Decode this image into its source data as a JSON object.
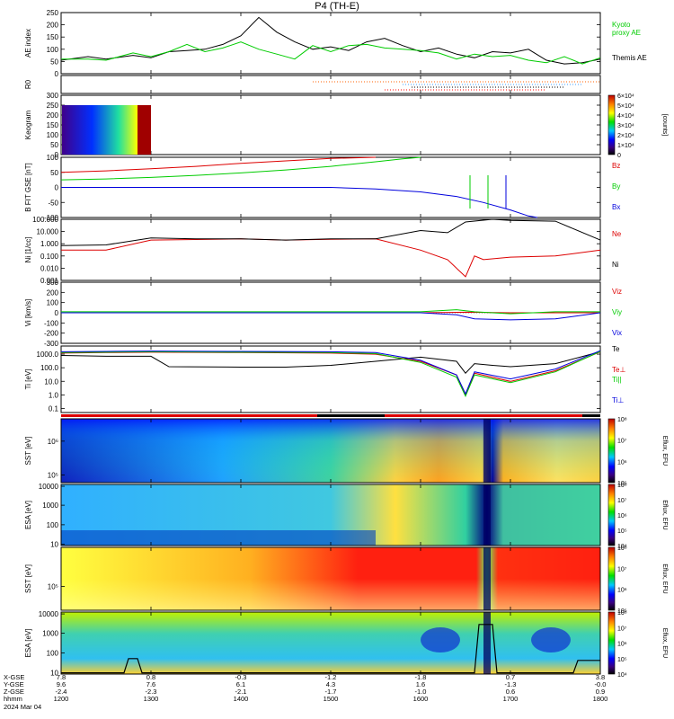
{
  "title": "P4 (TH-E)",
  "footer": {
    "row_labels": [
      "X-GSE",
      "Y-GSE",
      "Z-GSE",
      "hhmm",
      "2024 Mar 04"
    ],
    "columns": [
      {
        "x": "7.8",
        "y": "9.6",
        "z": "-2.4",
        "t": "1200"
      },
      {
        "x": "0.8",
        "y": "7.6",
        "z": "-2.3",
        "t": "1300"
      },
      {
        "x": "-0.3",
        "y": "6.1",
        "z": "-2.1",
        "t": "1400"
      },
      {
        "x": "-1.2",
        "y": "4.3",
        "z": "-1.7",
        "t": "1500"
      },
      {
        "x": "-1.8",
        "y": "1.6",
        "z": "-1.0",
        "t": "1600"
      },
      {
        "x": "0.7",
        "y": "-1.3",
        "z": "0.6",
        "t": "1700"
      },
      {
        "x": "3.8",
        "y": "-0.0",
        "z": "0.9",
        "t": "1800"
      }
    ]
  },
  "chart_data": [
    {
      "type": "line",
      "ylabel": "AE index",
      "ylim": [
        0,
        250
      ],
      "yticks": [
        "0",
        "50",
        "100",
        "150",
        "200",
        "250"
      ],
      "x_range_hhmm": [
        "1200",
        "1800"
      ],
      "series": [
        {
          "name": "Themis AE",
          "color": "#000000",
          "x": [
            0,
            0.3,
            0.5,
            0.8,
            1.0,
            1.2,
            1.4,
            1.6,
            1.8,
            2.0,
            2.2,
            2.4,
            2.6,
            2.8,
            3.0,
            3.2,
            3.4,
            3.6,
            3.8,
            4.0,
            4.2,
            4.4,
            4.6,
            4.8,
            5.0,
            5.2,
            5.4,
            5.6,
            5.8,
            6.0
          ],
          "y": [
            55,
            70,
            60,
            75,
            65,
            90,
            95,
            100,
            120,
            155,
            230,
            170,
            130,
            100,
            110,
            95,
            130,
            145,
            115,
            90,
            105,
            80,
            65,
            90,
            85,
            100,
            55,
            40,
            45,
            60
          ]
        },
        {
          "name": "Kyoto proxy AE",
          "color": "#00cc00",
          "x": [
            0,
            0.3,
            0.5,
            0.8,
            1.0,
            1.2,
            1.4,
            1.6,
            1.8,
            2.0,
            2.2,
            2.4,
            2.6,
            2.8,
            3.0,
            3.2,
            3.4,
            3.6,
            3.8,
            4.0,
            4.2,
            4.4,
            4.6,
            4.8,
            5.0,
            5.2,
            5.4,
            5.6,
            5.8,
            6.0
          ],
          "y": [
            60,
            60,
            55,
            85,
            70,
            90,
            120,
            90,
            105,
            130,
            100,
            80,
            60,
            115,
            90,
            115,
            120,
            105,
            100,
            95,
            85,
            60,
            80,
            70,
            75,
            55,
            45,
            70,
            40,
            65
          ]
        }
      ]
    },
    {
      "type": "line",
      "ylabel": "R0",
      "series": []
    },
    {
      "type": "heatmap",
      "ylabel": "Keogram",
      "ylim": [
        0,
        300
      ],
      "yticks": [
        "0",
        "50",
        "100",
        "150",
        "200",
        "250",
        "300"
      ],
      "colorbar_label": "[counts]",
      "colorbar_ticks": [
        "0",
        "1×10⁴",
        "2×10⁴",
        "3×10⁴",
        "4×10⁴",
        "5×10⁴",
        "6×10⁴"
      ]
    },
    {
      "type": "line",
      "ylabel": "B FIT GSE [nT]",
      "ylim": [
        -100,
        100
      ],
      "yticks": [
        "-100",
        "-50",
        "0",
        "50",
        "100"
      ],
      "series": [
        {
          "name": "Bz",
          "color": "#dd0000",
          "x": [
            0,
            0.5,
            1.0,
            1.5,
            2.0,
            2.5,
            3.0,
            3.5
          ],
          "y": [
            50,
            55,
            62,
            70,
            80,
            88,
            96,
            100
          ]
        },
        {
          "name": "By",
          "color": "#00cc00",
          "x": [
            0,
            0.5,
            1.0,
            1.5,
            2.0,
            2.5,
            3.0,
            3.5,
            3.8,
            4.0
          ],
          "y": [
            25,
            28,
            33,
            40,
            48,
            58,
            70,
            85,
            95,
            100
          ]
        },
        {
          "name": "Bx",
          "color": "#0000dd",
          "x": [
            0,
            0.5,
            1.0,
            1.5,
            2.0,
            2.5,
            3.0,
            3.5,
            4.0,
            4.4,
            4.7,
            5.0,
            5.2,
            5.3
          ],
          "y": [
            0,
            0,
            0,
            0,
            0,
            0,
            0,
            -5,
            -15,
            -30,
            -50,
            -75,
            -95,
            -100
          ]
        }
      ]
    },
    {
      "type": "line",
      "ylabel": "Ni [1/cc]",
      "ylog": true,
      "yticks": [
        "0.001",
        "0.010",
        "0.100",
        "1.000",
        "10.000",
        "100.000"
      ],
      "series": [
        {
          "name": "Ne",
          "color": "#dd0000",
          "x": [
            0,
            0.5,
            1.0,
            1.5,
            2.0,
            2.5,
            3.0,
            3.5,
            4.0,
            4.3,
            4.5,
            4.6,
            4.7,
            5.0,
            5.5,
            6.0
          ],
          "y": [
            0.3,
            0.3,
            2.0,
            2.2,
            2.5,
            2.0,
            2.3,
            2.5,
            0.3,
            0.05,
            0.002,
            0.1,
            0.05,
            0.08,
            0.1,
            0.3
          ]
        },
        {
          "name": "Ni",
          "color": "#000000",
          "x": [
            0,
            0.5,
            1.0,
            1.5,
            2.0,
            2.5,
            3.0,
            3.5,
            4.0,
            4.3,
            4.5,
            4.8,
            5.0,
            5.5,
            6.0
          ],
          "y": [
            0.7,
            0.8,
            3.0,
            2.5,
            2.5,
            2.0,
            2.5,
            2.5,
            12,
            8,
            60,
            100,
            80,
            70,
            2.0
          ]
        }
      ]
    },
    {
      "type": "line",
      "ylabel": "Vi [km/s]",
      "ylim": [
        -300,
        300
      ],
      "yticks": [
        "-300",
        "-200",
        "-100",
        "0",
        "100",
        "200",
        "300"
      ],
      "series": [
        {
          "name": "Viz",
          "color": "#dd0000",
          "x": [
            0,
            1.0,
            2.0,
            3.0,
            4.0,
            4.5,
            5.0,
            6.0
          ],
          "y": [
            0,
            0,
            0,
            0,
            0,
            5,
            0,
            0
          ]
        },
        {
          "name": "Viy",
          "color": "#00cc00",
          "x": [
            0,
            1.0,
            2.0,
            3.0,
            4.0,
            4.4,
            4.6,
            5.0,
            5.5,
            6.0
          ],
          "y": [
            10,
            10,
            10,
            10,
            10,
            30,
            10,
            -10,
            10,
            10
          ]
        },
        {
          "name": "Vix",
          "color": "#0000dd",
          "x": [
            0,
            1.0,
            2.0,
            3.0,
            4.0,
            4.4,
            4.6,
            5.0,
            5.5,
            6.0
          ],
          "y": [
            0,
            0,
            0,
            0,
            0,
            -20,
            -60,
            -70,
            -60,
            0
          ]
        }
      ]
    },
    {
      "type": "line",
      "ylabel": "Ti [eV]",
      "ylog": true,
      "yticks": [
        "0.1",
        "1.0",
        "10.0",
        "100.0",
        "1000.0"
      ],
      "series": [
        {
          "name": "Te",
          "color": "#000000",
          "x": [
            0,
            0.5,
            1.0,
            1.2,
            2.0,
            2.5,
            3.0,
            3.5,
            4.0,
            4.4,
            4.5,
            4.6,
            4.8,
            5.0,
            5.5,
            6.0
          ],
          "y": [
            800,
            700,
            700,
            120,
            110,
            110,
            150,
            300,
            600,
            300,
            40,
            200,
            150,
            120,
            200,
            1500
          ]
        },
        {
          "name": "Te⊥",
          "color": "#dd0000",
          "x": [
            0,
            0.5,
            1.0,
            2.0,
            3.0,
            3.5,
            4.0,
            4.4,
            4.5,
            4.6,
            5.0,
            5.5,
            6.0
          ],
          "y": [
            1200,
            1300,
            1400,
            1300,
            1200,
            1000,
            300,
            30,
            1,
            40,
            10,
            60,
            1500
          ]
        },
        {
          "name": "Ti||",
          "color": "#00cc00",
          "x": [
            0,
            0.5,
            1.0,
            2.0,
            3.0,
            3.5,
            4.0,
            4.4,
            4.5,
            4.6,
            5.0,
            5.5,
            6.0
          ],
          "y": [
            1300,
            1400,
            1500,
            1400,
            1300,
            1100,
            250,
            20,
            0.8,
            30,
            8,
            50,
            1600
          ]
        },
        {
          "name": "Ti⊥",
          "color": "#0000dd",
          "x": [
            0,
            0.5,
            1.0,
            2.0,
            3.0,
            3.5,
            4.0,
            4.4,
            4.5,
            4.6,
            5.0,
            5.5,
            6.0
          ],
          "y": [
            1500,
            1600,
            1700,
            1600,
            1500,
            1300,
            350,
            30,
            1.2,
            50,
            15,
            80,
            1800
          ]
        }
      ]
    },
    {
      "type": "heatmap",
      "ylabel": "SST [eV]",
      "yticks": [
        "10⁵",
        "10⁶"
      ],
      "colorbar_label": "Eflux, EFU",
      "colorbar_ticks": [
        "10⁵",
        "10⁶",
        "10⁷",
        "10⁸"
      ]
    },
    {
      "type": "heatmap",
      "ylabel": "ESA [eV]",
      "yticks": [
        "10",
        "100",
        "1000",
        "10000"
      ],
      "colorbar_label": "Eflux, EFU",
      "colorbar_ticks": [
        "10⁴",
        "10⁵",
        "10⁶",
        "10⁷",
        "10⁸"
      ]
    },
    {
      "type": "heatmap",
      "ylabel": "SST [eV]",
      "yticks": [
        "10⁵"
      ],
      "colorbar_label": "Eflux, EFU",
      "colorbar_ticks": [
        "10⁵",
        "10⁶",
        "10⁷",
        "10⁸"
      ]
    },
    {
      "type": "heatmap",
      "ylabel": "ESA [eV]",
      "yticks": [
        "10",
        "100",
        "1000",
        "10000"
      ],
      "colorbar_label": "Eflux, EFU",
      "colorbar_ticks": [
        "10⁴",
        "10⁵",
        "10⁶",
        "10⁷",
        "10⁸"
      ]
    }
  ],
  "legend_labels": {
    "ae": [
      "Kyoto",
      "proxy AE",
      "Themis AE"
    ],
    "b": [
      "Bz",
      "By",
      "Bx"
    ],
    "ni": [
      "Ne",
      "Ni"
    ],
    "vi": [
      "Viz",
      "Viy",
      "Vix"
    ],
    "ti": [
      "Te",
      "Te⊥",
      "Ti||",
      "Ti⊥"
    ]
  },
  "colors": {
    "red": "#dd0000",
    "green": "#00cc00",
    "blue": "#0000dd",
    "black": "#000000"
  }
}
